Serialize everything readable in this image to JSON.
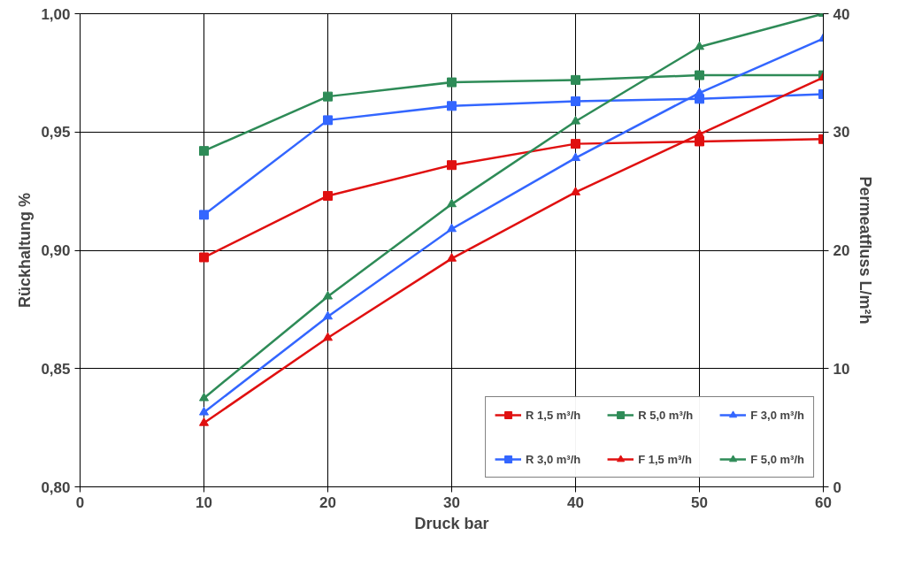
{
  "chart_data": {
    "type": "line",
    "xlabel": "Druck bar",
    "ylabel": "Rückhaltung %",
    "y2label": "Permeatfluss L/m²h",
    "xlim": [
      0,
      60
    ],
    "xticks": [
      0,
      10,
      20,
      30,
      40,
      50,
      60
    ],
    "ylim": [
      0.8,
      1.0
    ],
    "yticks": [
      {
        "value": 0.8,
        "label": "0,80"
      },
      {
        "value": 0.85,
        "label": "0,85"
      },
      {
        "value": 0.9,
        "label": "0,90"
      },
      {
        "value": 0.95,
        "label": "0,95"
      },
      {
        "value": 1.0,
        "label": "1,00"
      }
    ],
    "y2lim": [
      0,
      40
    ],
    "y2ticks": [
      0,
      10,
      20,
      30,
      40
    ],
    "grid": true,
    "legend": "bottom right",
    "line_style": "solid",
    "series": [
      {
        "name": "R 1,5 m³/h",
        "color": "#e01010",
        "marker": "square",
        "x": [
          10,
          20,
          30,
          40,
          50,
          60
        ],
        "values": [
          0.897,
          0.923,
          0.936,
          0.945,
          0.946,
          0.947
        ]
      },
      {
        "name": "R 3,0 m³/h",
        "color": "#3366ff",
        "marker": "square",
        "x": [
          10,
          20,
          30,
          40,
          50,
          60
        ],
        "values": [
          0.915,
          0.955,
          0.961,
          0.963,
          0.964,
          0.966
        ]
      },
      {
        "name": "R 5,0 m³/h",
        "color": "#2e8b57",
        "marker": "square",
        "x": [
          10,
          20,
          30,
          40,
          50,
          60
        ],
        "values": [
          0.942,
          0.965,
          0.971,
          0.972,
          0.974,
          0.974
        ]
      },
      {
        "name": "F 1,5 m³/h",
        "color": "#e01010",
        "marker": "triangle",
        "axis": "y2",
        "x": [
          10,
          20,
          30,
          40,
          50,
          60
        ],
        "values": [
          5.4,
          12.6,
          19.3,
          24.9,
          29.8,
          34.6
        ]
      },
      {
        "name": "F 3,0 m³/h",
        "color": "#3366ff",
        "marker": "triangle",
        "axis": "y2",
        "x": [
          10,
          20,
          30,
          40,
          50,
          60
        ],
        "values": [
          6.3,
          14.4,
          21.8,
          27.8,
          33.3,
          37.9
        ]
      },
      {
        "name": "F 5,0 m³/h",
        "color": "#2e8b57",
        "marker": "triangle",
        "axis": "y2",
        "x": [
          10,
          20,
          30,
          40,
          50,
          60
        ],
        "values": [
          7.5,
          16.1,
          23.9,
          30.9,
          37.2,
          40.0
        ]
      }
    ]
  }
}
